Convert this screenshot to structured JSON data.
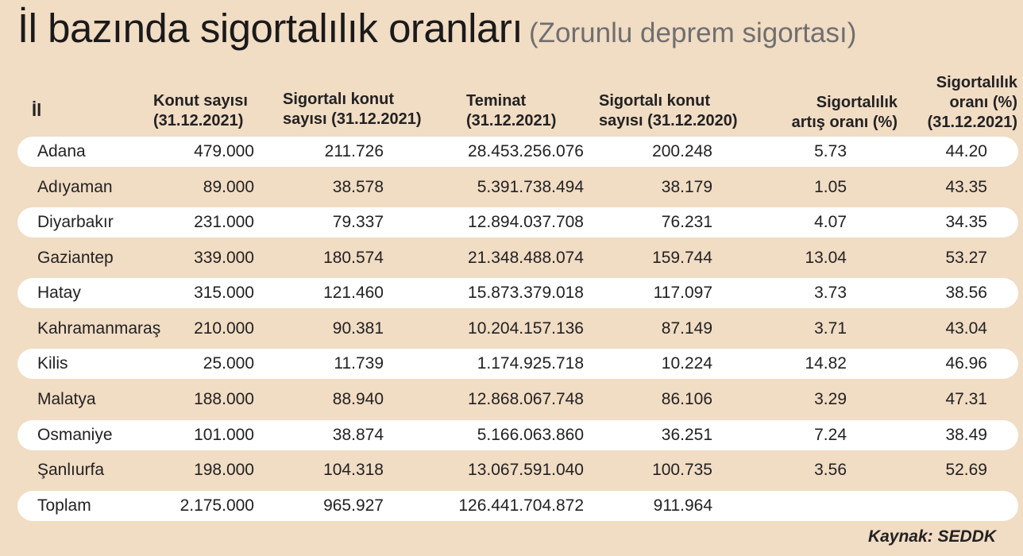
{
  "title": {
    "main": "İl bazında sigortalılık oranları",
    "sub": "(Zorunlu deprem sigortası)"
  },
  "headers": {
    "il": "İl",
    "konut": [
      "Konut sayısı",
      "(31.12.2021)"
    ],
    "sigortali2021": [
      "Sigortalı konut",
      "sayısı (31.12.2021)"
    ],
    "teminat": [
      "Teminat",
      "(31.12.2021)"
    ],
    "sigortali2020": [
      "Sigortalı konut",
      "sayısı (31.12.2020)"
    ],
    "artis": [
      "Sigortalılık",
      "artış oranı (%)"
    ],
    "oran": [
      "Sigortalılık",
      "oranı (%)",
      "(31.12.2021)"
    ]
  },
  "rows": [
    {
      "il": "Adana",
      "konut": "479.000",
      "sig21": "211.726",
      "teminat": "28.453.256.076",
      "sig20": "200.248",
      "artis": "5.73",
      "oran": "44.20"
    },
    {
      "il": "Adıyaman",
      "konut": "89.000",
      "sig21": "38.578",
      "teminat": "5.391.738.494",
      "sig20": "38.179",
      "artis": "1.05",
      "oran": "43.35"
    },
    {
      "il": "Diyarbakır",
      "konut": "231.000",
      "sig21": "79.337",
      "teminat": "12.894.037.708",
      "sig20": "76.231",
      "artis": "4.07",
      "oran": "34.35"
    },
    {
      "il": "Gaziantep",
      "konut": "339.000",
      "sig21": "180.574",
      "teminat": "21.348.488.074",
      "sig20": "159.744",
      "artis": "13.04",
      "oran": "53.27"
    },
    {
      "il": "Hatay",
      "konut": "315.000",
      "sig21": "121.460",
      "teminat": "15.873.379.018",
      "sig20": "117.097",
      "artis": "3.73",
      "oran": "38.56"
    },
    {
      "il": "Kahramanmaraş",
      "konut": "210.000",
      "sig21": "90.381",
      "teminat": "10.204.157.136",
      "sig20": "87.149",
      "artis": "3.71",
      "oran": "43.04"
    },
    {
      "il": "Kilis",
      "konut": "25.000",
      "sig21": "11.739",
      "teminat": "1.174.925.718",
      "sig20": "10.224",
      "artis": "14.82",
      "oran": "46.96"
    },
    {
      "il": "Malatya",
      "konut": "188.000",
      "sig21": "88.940",
      "teminat": "12.868.067.748",
      "sig20": "86.106",
      "artis": "3.29",
      "oran": "47.31"
    },
    {
      "il": "Osmaniye",
      "konut": "101.000",
      "sig21": "38.874",
      "teminat": "5.166.063.860",
      "sig20": "36.251",
      "artis": "7.24",
      "oran": "38.49"
    },
    {
      "il": "Şanlıurfa",
      "konut": "198.000",
      "sig21": "104.318",
      "teminat": "13.067.591.040",
      "sig20": "100.735",
      "artis": "3.56",
      "oran": "52.69"
    },
    {
      "il": "Toplam",
      "konut": "2.175.000",
      "sig21": "965.927",
      "teminat": "126.441.704.872",
      "sig20": "911.964",
      "artis": "",
      "oran": ""
    }
  ],
  "source": "Kaynak: SEDDK",
  "colors": {
    "background": "#f1dcc4",
    "row_stripe": "#ffffff"
  }
}
